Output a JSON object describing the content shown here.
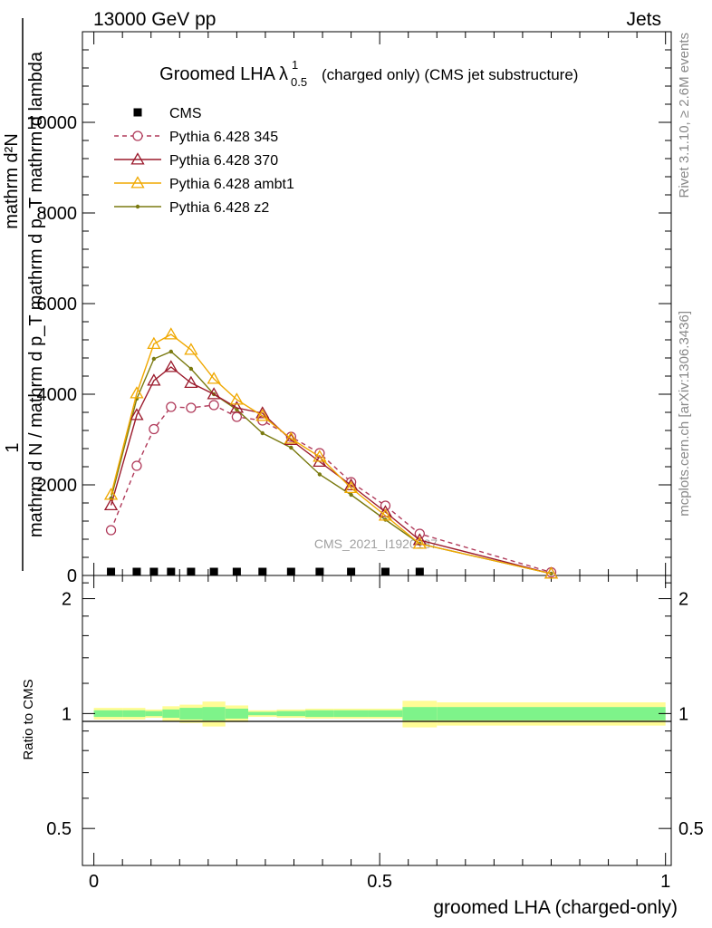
{
  "header": {
    "energy": "13000 GeV pp",
    "process": "Jets"
  },
  "side_labels": {
    "rivet": "Rivet 3.1.10, ≥ 2.6M events",
    "mcplots": "mcplots.cern.ch [arXiv:1306.3436]"
  },
  "watermark": "CMS_2021_I1920187",
  "chart_data": {
    "type": "line",
    "title": {
      "main": "Groomed LHA",
      "lambda": "λ",
      "sup": "1",
      "sub": "0.5",
      "suffix": "(charged only) (CMS jet substructure)"
    },
    "ylabel": {
      "one": "1",
      "numerator": "mathrm d²N",
      "denominator": "mathrm d N / mathrm d p_T mathrm d p_T mathrm d lambda"
    },
    "xlabel": "groomed LHA (charged-only)",
    "ratio_ylabel": "Ratio to CMS",
    "xlim": [
      -0.02,
      1.01
    ],
    "ylim": [
      0,
      12000
    ],
    "ratio_ylim": [
      0.4,
      2.3
    ],
    "x_ticks": [
      "0",
      "0.5",
      "1"
    ],
    "y_ticks": [
      "0",
      "2000",
      "4000",
      "6000",
      "8000",
      "10000"
    ],
    "ratio_ticks": [
      "0.5",
      "1",
      "2"
    ],
    "x": [
      0.03,
      0.075,
      0.105,
      0.135,
      0.17,
      0.21,
      0.25,
      0.295,
      0.345,
      0.395,
      0.45,
      0.51,
      0.57,
      0.8
    ],
    "bin_edges": [
      0.0,
      0.05,
      0.09,
      0.12,
      0.15,
      0.19,
      0.23,
      0.27,
      0.32,
      0.37,
      0.42,
      0.48,
      0.54,
      0.6,
      1.0
    ],
    "series": [
      {
        "name": "CMS",
        "color": "#000000",
        "marker": "square",
        "values": [
          20,
          20,
          20,
          20,
          20,
          20,
          20,
          20,
          20,
          20,
          20,
          20,
          20,
          20
        ]
      },
      {
        "name": "Pythia 6.428 345",
        "color": "#b03a5a",
        "marker": "circle",
        "dashed": true,
        "values": [
          1000,
          2420,
          3230,
          3720,
          3700,
          3760,
          3500,
          3420,
          3060,
          2700,
          2060,
          1540,
          920,
          70
        ]
      },
      {
        "name": "Pythia 6.428 370",
        "color": "#9b1a2c",
        "marker": "triangle",
        "values": [
          1550,
          3540,
          4300,
          4600,
          4250,
          4000,
          3700,
          3580,
          2990,
          2510,
          1990,
          1400,
          780,
          40
        ]
      },
      {
        "name": "Pythia 6.428 ambt1",
        "color": "#f0a800",
        "marker": "triangle",
        "values": [
          1780,
          4020,
          5110,
          5320,
          4980,
          4340,
          3880,
          3520,
          3020,
          2620,
          1930,
          1320,
          700,
          40
        ]
      },
      {
        "name": "Pythia 6.428 z2",
        "color": "#7a7a10",
        "marker": "dot",
        "values": [
          1700,
          3900,
          4780,
          4940,
          4560,
          4000,
          3660,
          3140,
          2820,
          2230,
          1780,
          1230,
          700,
          40
        ]
      }
    ],
    "ratio_band_inner": [
      0.02,
      0.02,
      0.015,
      0.025,
      0.035,
      0.04,
      0.03,
      0.01,
      0.015,
      0.02,
      0.02,
      0.02,
      0.04,
      0.04
    ],
    "ratio_band_outer": [
      0.035,
      0.035,
      0.025,
      0.045,
      0.055,
      0.075,
      0.05,
      0.02,
      0.025,
      0.03,
      0.03,
      0.03,
      0.08,
      0.07
    ],
    "colors": {
      "band_inner": "#7ef38a",
      "band_outer": "#fffc95"
    }
  }
}
